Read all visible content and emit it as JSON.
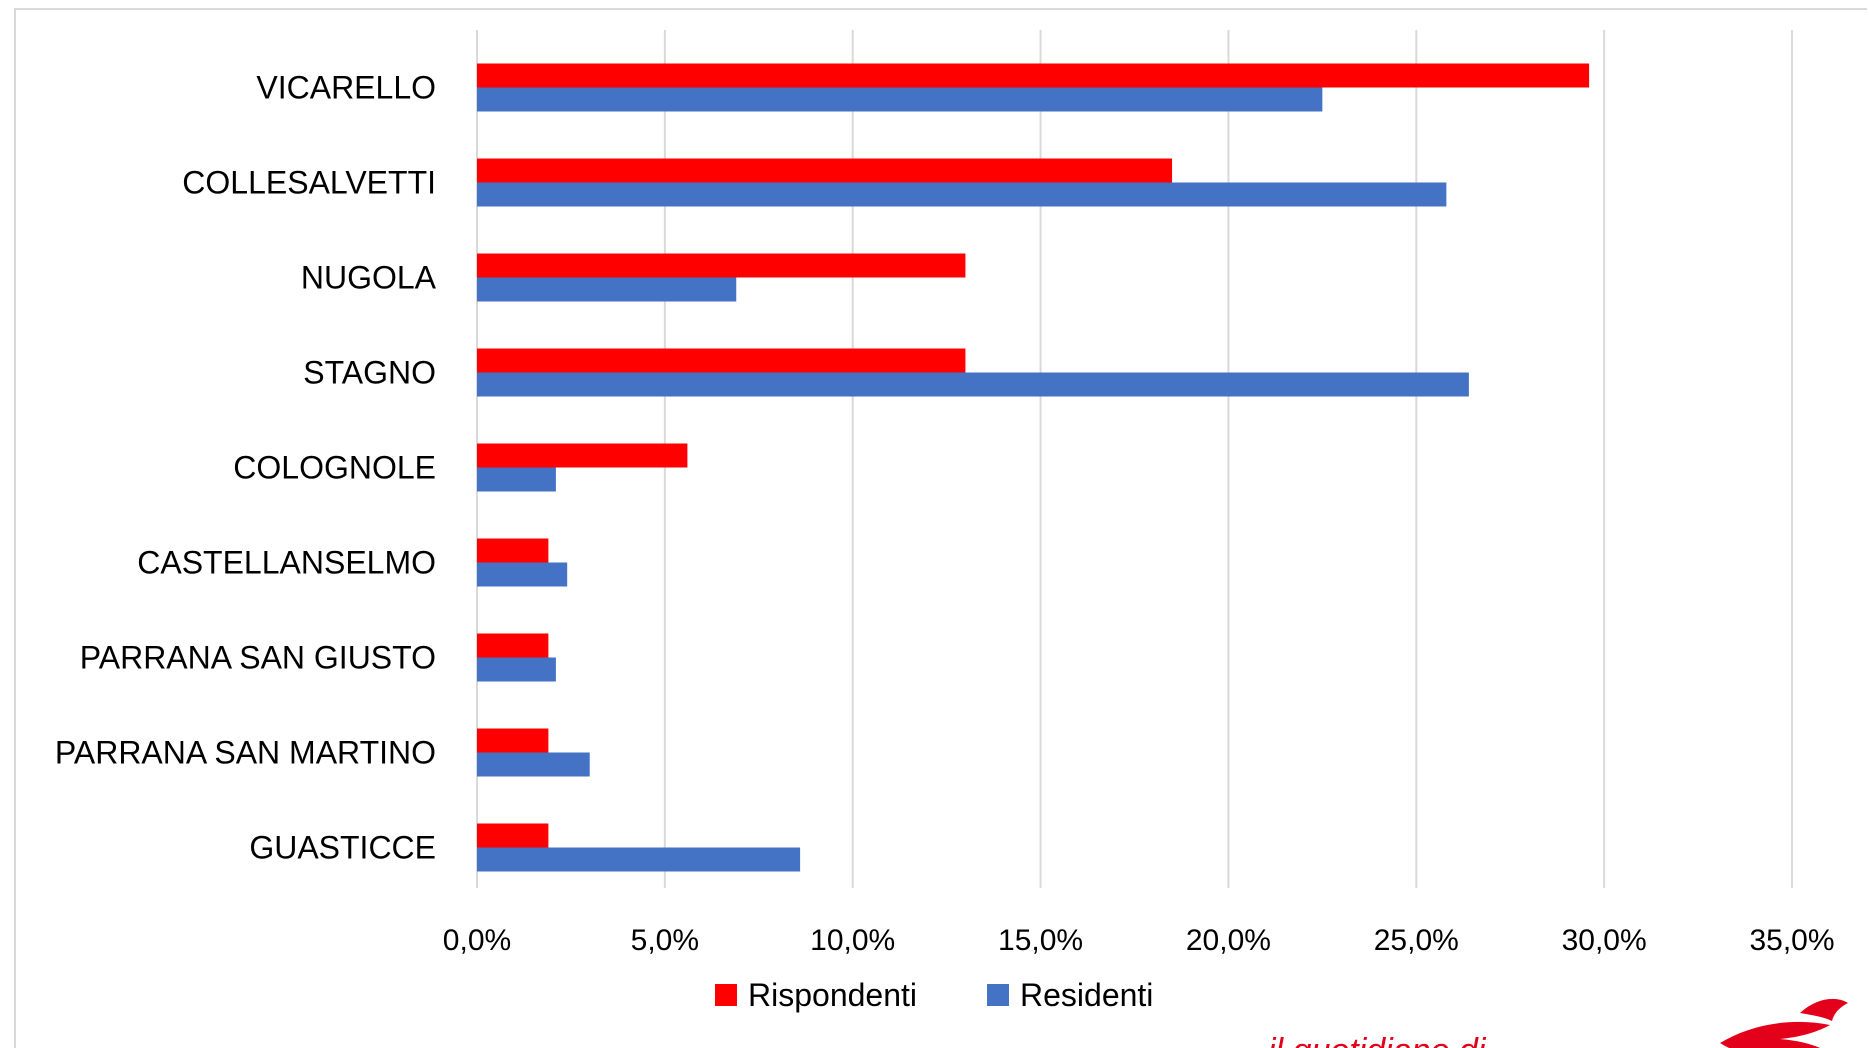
{
  "chart_data": {
    "type": "bar",
    "orientation": "horizontal",
    "categories": [
      "VICARELLO",
      "COLLESALVETTI",
      "NUGOLA",
      "STAGNO",
      "COLOGNOLE",
      "CASTELLANSELMO",
      "PARRANA SAN GIUSTO",
      "PARRANA SAN MARTINO",
      "GUASTICCE"
    ],
    "series": [
      {
        "name": "Rispondenti",
        "color": "#ff0000",
        "values": [
          29.6,
          18.5,
          13.0,
          13.0,
          5.6,
          1.9,
          1.9,
          1.9,
          1.9
        ]
      },
      {
        "name": "Residenti",
        "color": "#4472c4",
        "values": [
          22.5,
          25.8,
          6.9,
          26.4,
          2.1,
          2.4,
          2.1,
          3.0,
          8.6
        ]
      }
    ],
    "xlim": [
      0,
      35
    ],
    "x_ticks": [
      "0,0%",
      "5,0%",
      "10,0%",
      "15,0%",
      "20,0%",
      "25,0%",
      "30,0%",
      "35,0%"
    ],
    "grid": "vertical",
    "legend_position": "bottom",
    "title": "",
    "xlabel": "",
    "ylabel": ""
  },
  "footer": {
    "watermark_text": "il quotidiano di",
    "logo_icon": "winged-horse-logo-icon"
  }
}
